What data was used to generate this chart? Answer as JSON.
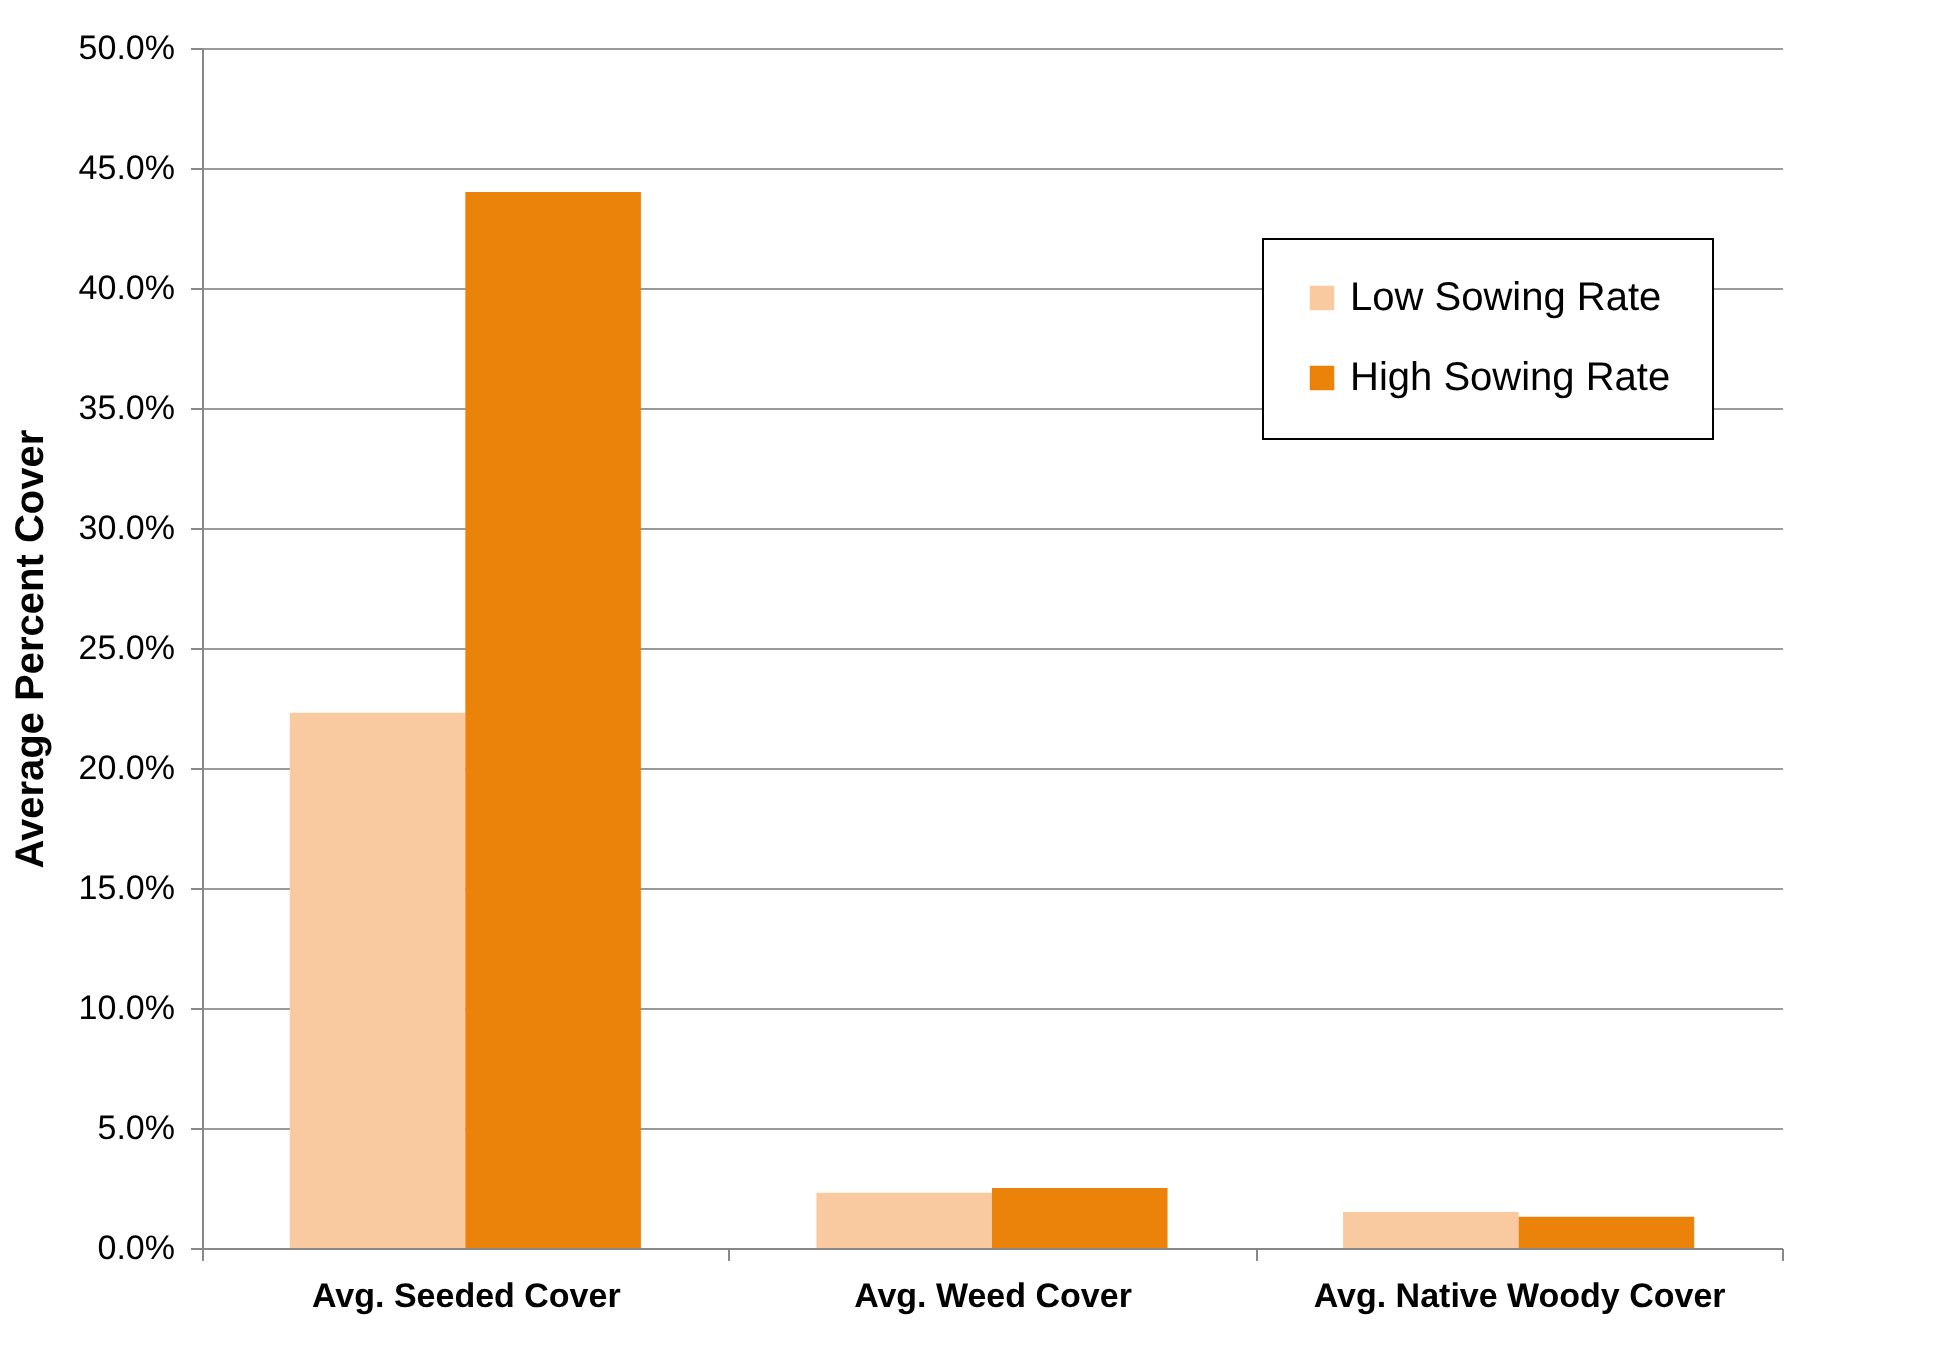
{
  "chart_data": {
    "type": "bar",
    "ylabel": "Average Percent Cover",
    "categories": [
      "Avg. Seeded Cover",
      "Avg. Weed Cover",
      "Avg. Native Woody Cover"
    ],
    "series": [
      {
        "name": "Low Sowing Rate",
        "color": "#f9c9a0",
        "values": [
          22.3,
          2.3,
          1.5
        ]
      },
      {
        "name": "High Sowing Rate",
        "color": "#eb820a",
        "values": [
          44.0,
          2.5,
          1.3
        ]
      }
    ],
    "ylim": [
      0,
      50
    ],
    "yticks": [
      {
        "value": 0,
        "label": "0.0%"
      },
      {
        "value": 5,
        "label": "5.0%"
      },
      {
        "value": 10,
        "label": "10.0%"
      },
      {
        "value": 15,
        "label": "15.0%"
      },
      {
        "value": 20,
        "label": "20.0%"
      },
      {
        "value": 25,
        "label": "25.0%"
      },
      {
        "value": 30,
        "label": "30.0%"
      },
      {
        "value": 35,
        "label": "35.0%"
      },
      {
        "value": 40,
        "label": "40.0%"
      },
      {
        "value": 45,
        "label": "45.0%"
      },
      {
        "value": 50,
        "label": "50.0%"
      }
    ],
    "grid": "y",
    "legend": "top right"
  }
}
